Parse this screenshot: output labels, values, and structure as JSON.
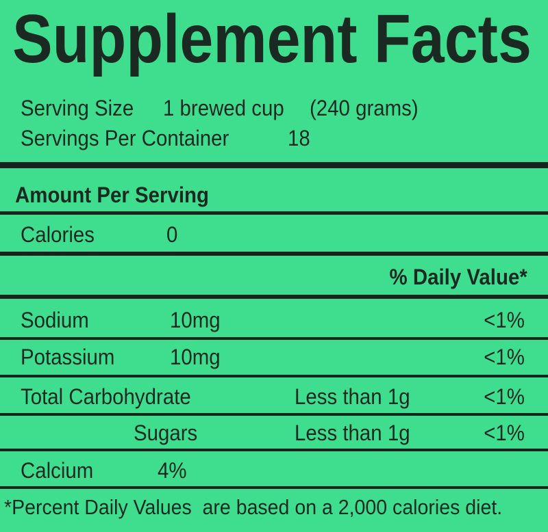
{
  "title": "Supplement Facts",
  "serving": {
    "label": "Serving Size",
    "amount": "1 brewed cup",
    "weight": "(240 grams)"
  },
  "servings_per_container": {
    "label": "Servings Per Container",
    "value": "18"
  },
  "amount_per_serving": "Amount Per Serving",
  "calories": {
    "label": "Calories",
    "value": "0"
  },
  "daily_value_header": "% Daily Value*",
  "nutrients": [
    {
      "name": "Sodium",
      "amount": "10mg",
      "dv": "<1%"
    },
    {
      "name": "Potassium",
      "amount": "10mg",
      "dv": "<1%"
    },
    {
      "name": "Total Carbohydrate",
      "qualifier": "Less than 1g",
      "dv": "<1%"
    },
    {
      "name": "Sugars",
      "qualifier": "Less than 1g",
      "dv": "<1%"
    },
    {
      "name": "Calcium",
      "amount": "4%"
    }
  ],
  "footnote": "*Percent Daily Values  are based on a 2,000 calories diet."
}
